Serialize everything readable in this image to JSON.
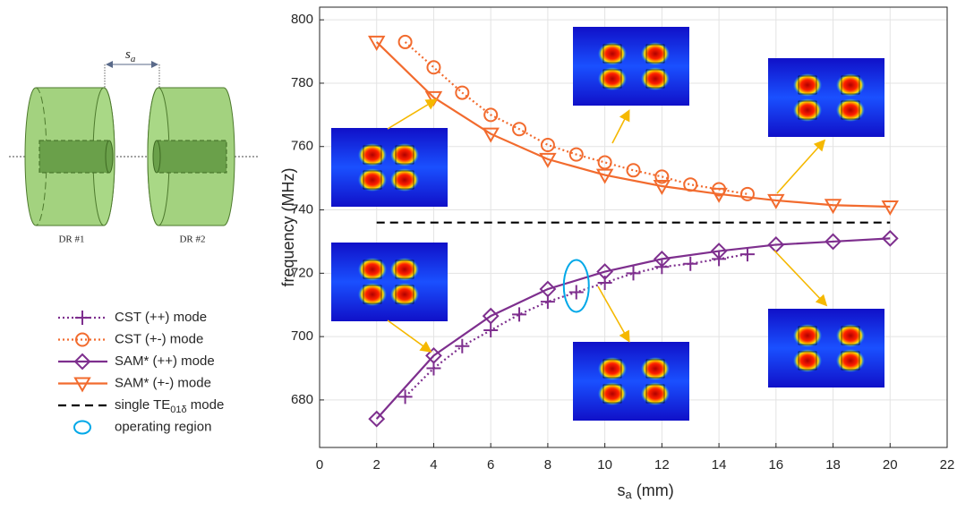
{
  "chart_data": {
    "type": "line",
    "x_label": {
      "base": "s",
      "sub": "a",
      "unit": " (mm)"
    },
    "y_label": "frequency (MHz)",
    "xlim": [
      0,
      22
    ],
    "xticks": [
      0,
      2,
      4,
      6,
      8,
      10,
      12,
      14,
      16,
      18,
      20,
      22
    ],
    "ylim": [
      665,
      804
    ],
    "yticks": [
      680,
      700,
      720,
      740,
      760,
      780,
      800
    ],
    "grid": true,
    "legend": "left",
    "series": [
      {
        "name": "CST (++) mode",
        "color": "#7e2f8e",
        "style": "dotted",
        "marker": "plus",
        "x": [
          3,
          4,
          5,
          6,
          7,
          8,
          9,
          10,
          11,
          12,
          13,
          14,
          15
        ],
        "values": [
          681,
          690,
          697,
          702,
          707,
          711,
          714,
          717,
          720,
          722,
          723,
          724.5,
          726
        ]
      },
      {
        "name": "CST (+-) mode",
        "color": "#f26b2e",
        "style": "dotted",
        "marker": "circle",
        "x": [
          3,
          4,
          5,
          6,
          7,
          8,
          9,
          10,
          11,
          12,
          13,
          14,
          15
        ],
        "values": [
          793,
          785,
          777,
          770,
          765.5,
          760.5,
          757.5,
          755,
          752.5,
          750.5,
          748,
          746.5,
          745
        ]
      },
      {
        "name": "SAM* (++) mode",
        "color": "#7e2f8e",
        "style": "solid",
        "marker": "diamond",
        "x": [
          2,
          4,
          6,
          8,
          10,
          12,
          14,
          16,
          18,
          20
        ],
        "values": [
          674,
          694,
          706.5,
          715,
          720.5,
          724.5,
          727,
          729,
          730,
          731
        ]
      },
      {
        "name": "SAM* (+-) mode",
        "color": "#f26b2e",
        "style": "solid",
        "marker": "triangle-down",
        "x": [
          2,
          4,
          6,
          8,
          10,
          12,
          14,
          16,
          18,
          20
        ],
        "values": [
          793,
          775.5,
          764,
          756,
          751,
          747.5,
          745,
          743,
          741.5,
          741
        ]
      },
      {
        "name": "single TE01δ mode",
        "color": "#000000",
        "style": "dashed",
        "marker": "none",
        "x": [
          2,
          20
        ],
        "values": [
          736,
          736
        ]
      }
    ],
    "annotations": [
      {
        "name": "operating region",
        "x": 9,
        "y": 716,
        "color": "#00a8e8"
      }
    ]
  },
  "diagram": {
    "gap_label": {
      "base": "s",
      "sub": "a"
    },
    "labels": [
      "DR #1",
      "DR #2"
    ]
  }
}
